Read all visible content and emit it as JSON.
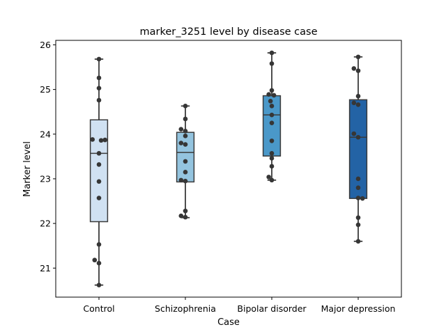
{
  "chart_data": {
    "type": "box",
    "title": "marker_3251 level by disease case",
    "xlabel": "Case",
    "ylabel": "Marker level",
    "categories": [
      "Control",
      "Schizophrenia",
      "Bipolar disorder",
      "Major depression"
    ],
    "ylim": [
      20.35,
      26.1
    ],
    "yticks": [
      21,
      22,
      23,
      24,
      25,
      26
    ],
    "grid": false,
    "box_colors": [
      "#d0e1f2",
      "#94c4df",
      "#4a98c9",
      "#2363a5"
    ],
    "edge_color": "#3a3a3a",
    "point_color": "#363636",
    "boxes": [
      {
        "category": "Control",
        "whisker_low": 20.62,
        "q1": 22.04,
        "median": 23.57,
        "q3": 24.32,
        "whisker_high": 25.68
      },
      {
        "category": "Schizophrenia",
        "whisker_low": 22.13,
        "q1": 22.93,
        "median": 23.59,
        "q3": 24.04,
        "whisker_high": 24.63
      },
      {
        "category": "Bipolar disorder",
        "whisker_low": 22.97,
        "q1": 23.51,
        "median": 24.43,
        "q3": 24.86,
        "whisker_high": 25.82
      },
      {
        "category": "Major depression",
        "whisker_low": 21.6,
        "q1": 22.56,
        "median": 23.93,
        "q3": 24.77,
        "whisker_high": 25.73
      }
    ],
    "points": [
      {
        "category": "Control",
        "values": [
          25.68,
          25.26,
          25.03,
          24.76,
          23.88,
          23.86,
          23.87,
          23.57,
          23.32,
          22.94,
          22.57,
          21.53,
          21.18,
          21.11,
          20.62
        ],
        "offsets": [
          0,
          0,
          0,
          0,
          -0.15,
          0.05,
          0.14,
          0,
          0,
          0,
          0,
          0,
          -0.1,
          0,
          0
        ]
      },
      {
        "category": "Schizophrenia",
        "values": [
          24.63,
          24.34,
          24.11,
          24.07,
          23.96,
          23.8,
          23.77,
          23.39,
          23.15,
          22.97,
          22.95,
          22.28,
          22.17,
          22.14
        ],
        "offsets": [
          0,
          0,
          -0.1,
          0,
          0,
          -0.1,
          0,
          0,
          0,
          -0.1,
          0,
          0,
          -0.1,
          0
        ]
      },
      {
        "category": "Bipolar disorder",
        "values": [
          25.82,
          25.58,
          24.98,
          24.89,
          24.87,
          24.74,
          24.63,
          24.43,
          24.25,
          23.85,
          23.57,
          23.46,
          23.28,
          23.04,
          22.97
        ],
        "offsets": [
          0,
          0,
          0,
          -0.07,
          0.05,
          -0.03,
          0,
          0,
          0,
          0,
          0,
          0,
          0,
          -0.07,
          0
        ]
      },
      {
        "category": "Major depression",
        "values": [
          25.73,
          25.47,
          25.42,
          24.85,
          24.7,
          24.66,
          24.01,
          23.93,
          23.0,
          22.8,
          22.57,
          22.56,
          22.13,
          21.97,
          21.6
        ],
        "offsets": [
          0,
          -0.1,
          0,
          0,
          -0.1,
          0,
          -0.1,
          0,
          0,
          0,
          0,
          0.1,
          0,
          0,
          0
        ]
      }
    ]
  }
}
